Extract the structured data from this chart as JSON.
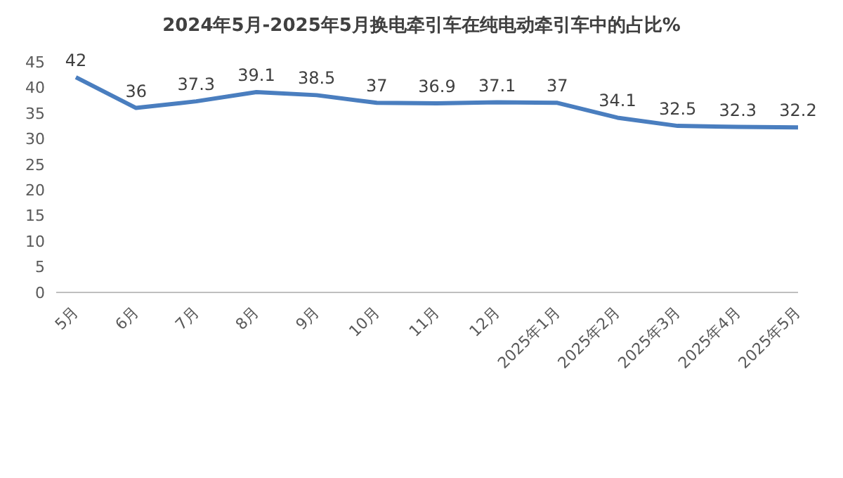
{
  "chart_data": {
    "type": "line",
    "title": "2024年5月-2025年5月换电牵引车在纯电动牵引车中的占比%",
    "categories": [
      "5月",
      "6月",
      "7月",
      "8月",
      "9月",
      "10月",
      "11月",
      "12月",
      "2025年1月",
      "2025年2月",
      "2025年3月",
      "2025年4月",
      "2025年5月"
    ],
    "series": [
      {
        "color": "#4a7ebf",
        "values": [
          42,
          36,
          37.3,
          39.1,
          38.5,
          37,
          36.9,
          37.1,
          37,
          34.1,
          32.5,
          32.3,
          32.2
        ]
      }
    ],
    "ylim": [
      0,
      45
    ],
    "yticks": [
      0,
      5,
      10,
      15,
      20,
      25,
      30,
      35,
      40,
      45
    ],
    "grid": false,
    "legend": false,
    "marker": "none",
    "line_style": "solid",
    "data_labels": true
  }
}
